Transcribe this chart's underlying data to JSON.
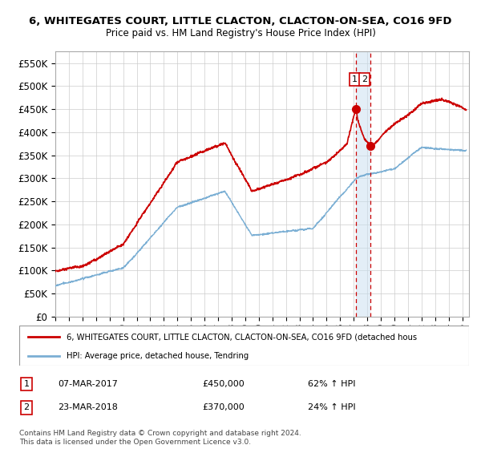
{
  "title": "6, WHITEGATES COURT, LITTLE CLACTON, CLACTON-ON-SEA, CO16 9FD",
  "subtitle": "Price paid vs. HM Land Registry's House Price Index (HPI)",
  "ylim": [
    0,
    575000
  ],
  "yticks": [
    0,
    50000,
    100000,
    150000,
    200000,
    250000,
    300000,
    350000,
    400000,
    450000,
    500000,
    550000
  ],
  "ytick_labels": [
    "£0",
    "£50K",
    "£100K",
    "£150K",
    "£200K",
    "£250K",
    "£300K",
    "£350K",
    "£400K",
    "£450K",
    "£500K",
    "£550K"
  ],
  "sale1_date": 2017.18,
  "sale1_price": 450000,
  "sale2_date": 2018.22,
  "sale2_price": 370000,
  "hpi_color": "#7bafd4",
  "price_color": "#cc0000",
  "dashed_color": "#cc0000",
  "legend1_text": "6, WHITEGATES COURT, LITTLE CLACTON, CLACTON-ON-SEA, CO16 9FD (detached hous",
  "legend2_text": "HPI: Average price, detached house, Tendring",
  "annotation1": [
    "1",
    "07-MAR-2017",
    "£450,000",
    "62% ↑ HPI"
  ],
  "annotation2": [
    "2",
    "23-MAR-2018",
    "£370,000",
    "24% ↑ HPI"
  ],
  "footer": "Contains HM Land Registry data © Crown copyright and database right 2024.\nThis data is licensed under the Open Government Licence v3.0.",
  "background_color": "#ffffff",
  "grid_color": "#cccccc"
}
